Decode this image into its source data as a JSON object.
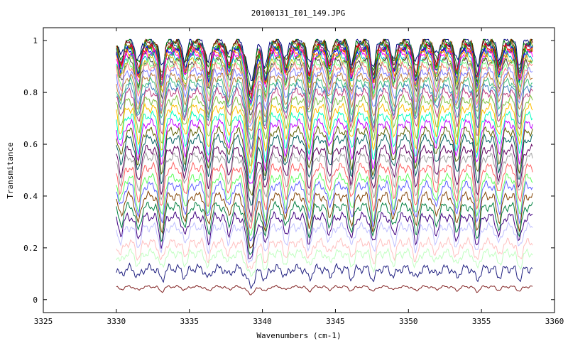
{
  "chart_data": {
    "type": "line",
    "title": "20100131_I01_149.JPG",
    "xlabel": "Wavenumbers (cm-1)",
    "ylabel": "Transmitance",
    "xlim": [
      3325,
      3360
    ],
    "ylim": [
      -0.05,
      1.05
    ],
    "x_ticks": [
      3325,
      3330,
      3335,
      3340,
      3345,
      3350,
      3355,
      3360
    ],
    "x_tick_labels": [
      "3325",
      "3330",
      "3335",
      "3340",
      "3345",
      "3350",
      "3355",
      "3360"
    ],
    "y_ticks": [
      0,
      0.2,
      0.4,
      0.6,
      0.8,
      1
    ],
    "y_tick_labels": [
      "0",
      "0.2",
      "0.4",
      "0.6",
      "0.8",
      "1"
    ],
    "grid": false,
    "legend": "none",
    "x_range_data": [
      3330,
      3358.5
    ],
    "num_series": 40,
    "absorption_line_centers": [
      3330.3,
      3331.5,
      3333.1,
      3334.7,
      3336.3,
      3337.7,
      3339.2,
      3340.2,
      3341.6,
      3343.2,
      3344.6,
      3346.1,
      3347.6,
      3349.0,
      3350.5,
      3351.9,
      3353.3,
      3354.7,
      3356.2,
      3357.6
    ],
    "series_baselines": [
      1.0,
      0.995,
      0.99,
      0.985,
      0.98,
      0.975,
      0.97,
      0.965,
      0.96,
      0.955,
      0.95,
      0.94,
      0.93,
      0.92,
      0.91,
      0.9,
      0.88,
      0.86,
      0.84,
      0.82,
      0.8,
      0.77,
      0.74,
      0.71,
      0.68,
      0.65,
      0.62,
      0.58,
      0.55,
      0.51,
      0.47,
      0.44,
      0.4,
      0.36,
      0.32,
      0.28,
      0.22,
      0.18,
      0.12,
      0.05
    ],
    "series_colors": [
      "#000080",
      "#008000",
      "#800000",
      "#808000",
      "#008080",
      "#800080",
      "#ff0000",
      "#00c000",
      "#0000ff",
      "#ff8000",
      "#ff00ff",
      "#00c0c0",
      "#c0c000",
      "#404040",
      "#80ff80",
      "#ff8080",
      "#8080ff",
      "#c08040",
      "#40c080",
      "#4080c0",
      "#c04080",
      "#80c040",
      "#ffc000",
      "#00ffc0",
      "#c000ff",
      "#606000",
      "#006060",
      "#600060",
      "#a0a0a0",
      "#ff6060",
      "#60ff60",
      "#6060ff",
      "#804000",
      "#008040",
      "#400080",
      "#c0c0ff",
      "#ffc0c0",
      "#c0ffc0",
      "#202080",
      "#802020"
    ]
  }
}
